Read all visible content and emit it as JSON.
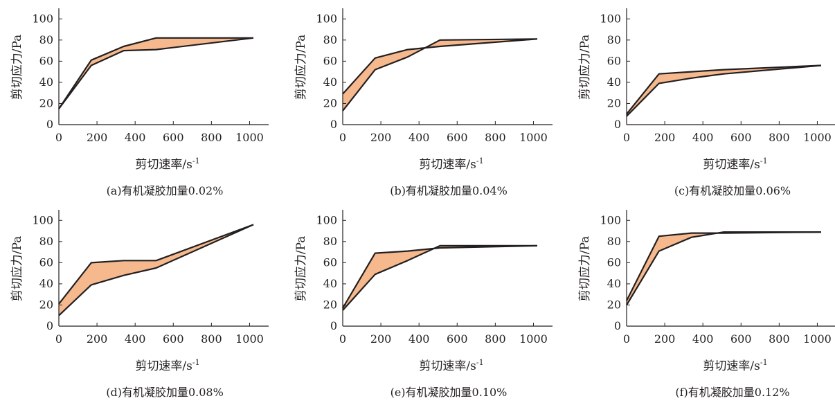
{
  "figure": {
    "colors": {
      "fill": "#f6b98e",
      "line": "#231f20",
      "axis": "#231f20"
    }
  },
  "chart_data": [
    {
      "type": "area",
      "caption": "(a)有机凝胶加量0.02%",
      "xlabel": "剪切速率/s",
      "xlabel_sup": "-1",
      "ylabel": "剪切应力/Pa",
      "xlim": [
        0,
        1100
      ],
      "ylim": [
        0,
        110
      ],
      "xticks": [
        0,
        200,
        400,
        600,
        800,
        1000
      ],
      "yticks": [
        0,
        20,
        40,
        60,
        80,
        100
      ],
      "x": [
        0,
        170,
        340,
        510,
        1020
      ],
      "series": [
        {
          "values": [
            15,
            61,
            74,
            82,
            82
          ]
        },
        {
          "values": [
            15,
            56,
            70,
            71,
            82
          ]
        }
      ]
    },
    {
      "type": "area",
      "caption": "(b)有机凝胶加量0.04%",
      "xlabel": "剪切速率/s",
      "xlabel_sup": "-1",
      "ylabel": "剪切应力/Pa",
      "xlim": [
        0,
        1100
      ],
      "ylim": [
        0,
        110
      ],
      "xticks": [
        0,
        200,
        400,
        600,
        800,
        1000
      ],
      "yticks": [
        0,
        20,
        40,
        60,
        80,
        100
      ],
      "x": [
        0,
        170,
        340,
        510,
        1020
      ],
      "series": [
        {
          "values": [
            29,
            63,
            71,
            74,
            81
          ]
        },
        {
          "values": [
            13,
            52,
            64,
            80,
            81
          ]
        }
      ]
    },
    {
      "type": "area",
      "caption": "(c)有机凝胶加量0.06%",
      "xlabel": "剪切速率/s",
      "xlabel_sup": "-1",
      "ylabel": "剪切应力/Pa",
      "xlim": [
        0,
        1100
      ],
      "ylim": [
        0,
        110
      ],
      "xticks": [
        0,
        200,
        400,
        600,
        800,
        1000
      ],
      "yticks": [
        0,
        20,
        40,
        60,
        80,
        100
      ],
      "x": [
        0,
        170,
        340,
        510,
        1020
      ],
      "series": [
        {
          "values": [
            10,
            48,
            50,
            52,
            56
          ]
        },
        {
          "values": [
            8,
            39,
            44,
            48,
            56
          ]
        }
      ]
    },
    {
      "type": "area",
      "caption": "(d)有机凝胶加量0.08%",
      "xlabel": "剪切速率/s",
      "xlabel_sup": "-1",
      "ylabel": "剪切应力/Pa",
      "xlim": [
        0,
        1100
      ],
      "ylim": [
        0,
        110
      ],
      "xticks": [
        0,
        200,
        400,
        600,
        800,
        1000
      ],
      "yticks": [
        0,
        20,
        40,
        60,
        80,
        100
      ],
      "x": [
        0,
        170,
        340,
        510,
        1020
      ],
      "series": [
        {
          "values": [
            21,
            60,
            62,
            62,
            96
          ]
        },
        {
          "values": [
            10,
            39,
            48,
            55,
            96
          ]
        }
      ]
    },
    {
      "type": "area",
      "caption": "(e)有机凝胶加量0.10%",
      "xlabel": "剪切速率/s",
      "xlabel_sup": "-1",
      "ylabel": "剪切应力/Pa",
      "xlim": [
        0,
        1100
      ],
      "ylim": [
        0,
        110
      ],
      "xticks": [
        0,
        200,
        400,
        600,
        800,
        1000
      ],
      "yticks": [
        0,
        20,
        40,
        60,
        80,
        100
      ],
      "x": [
        0,
        170,
        340,
        510,
        1020
      ],
      "series": [
        {
          "values": [
            17,
            69,
            71,
            74,
            76
          ]
        },
        {
          "values": [
            15,
            49,
            62,
            76,
            76
          ]
        }
      ]
    },
    {
      "type": "area",
      "caption": "(f)有机凝胶加量0.12%",
      "xlabel": "剪切速率/s",
      "xlabel_sup": "-1",
      "ylabel": "剪切应力/Pa",
      "xlim": [
        0,
        1100
      ],
      "ylim": [
        0,
        110
      ],
      "xticks": [
        0,
        200,
        400,
        600,
        800,
        1000
      ],
      "yticks": [
        0,
        20,
        40,
        60,
        80,
        100
      ],
      "x": [
        0,
        170,
        340,
        510,
        1020
      ],
      "series": [
        {
          "values": [
            24,
            85,
            88,
            88,
            89
          ]
        },
        {
          "values": [
            20,
            71,
            84,
            89,
            89
          ]
        }
      ]
    }
  ]
}
